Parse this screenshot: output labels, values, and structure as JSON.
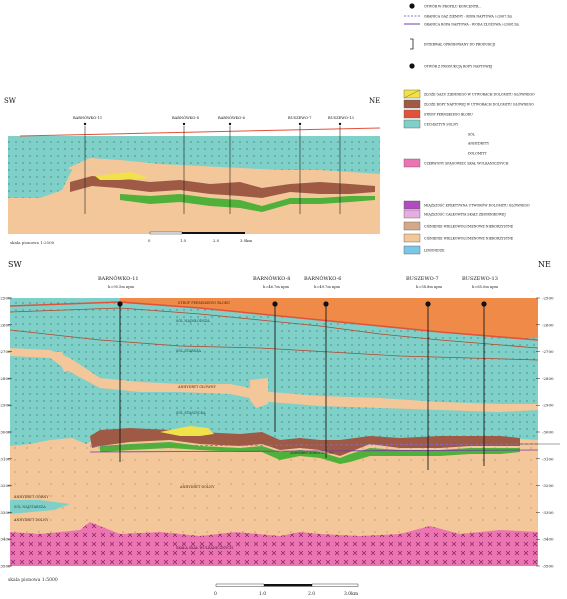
{
  "colors": {
    "salt": "#7fd0c8",
    "anhydrite": "#f3c79a",
    "dolomite": "#4fb03a",
    "main_dolomite_gas": "#f1e24a",
    "main_dolomite_oil": "#9e5a44",
    "pz3_floor": "#e2523a",
    "orange_top": "#ef8a48",
    "volcanics": "#ec74b3",
    "violet": "#b04bc0",
    "lightpink": "#e6aede",
    "tan": "#d5a88a",
    "cream": "#f4c79a",
    "blue": "#7ac7e8",
    "gas_line": "#8b6cc9",
    "oil_line": "#6f3fa5"
  },
  "legend": {
    "items": [
      {
        "symbol": "dot",
        "label": "OTWÓR W PROFILU KONCENTR..."
      },
      {
        "symbol": "dash",
        "label": "GRANICA GAZ ZIEMNY - ROPA NAFTOWA /-/2067.5m"
      },
      {
        "symbol": "line",
        "label": "GRANICA ROPA NAFTOWA - WODA ZŁOŻOWA /-/2068.5m"
      },
      {
        "symbol": "bracket",
        "label": "INTERWAŁ OPRÓBOWANY DO PRODUKCJI"
      },
      {
        "symbol": "dot",
        "label": "OTWÓR Z PRODUKCJĄ ROPY NAFTOWEJ"
      },
      {
        "symbol": "swatch-gas",
        "label": "ZŁOŻE GAZU ZIEMNEGO W UTWORACH DOLOMITU GŁÓWNEGO"
      },
      {
        "symbol": "swatch-oil",
        "label": "ZŁOŻE ROPY NAFTOWEJ W UTWORACH DOLOMITU GŁÓWNEGO"
      },
      {
        "symbol": "swatch-floor",
        "label": "STROP PERMSKIEGO BLOKU"
      },
      {
        "symbol": "swatch-salt",
        "label": "CECHSZTYN SOLNY"
      },
      {
        "symbol": "label-only",
        "label": "SÓL"
      },
      {
        "symbol": "label-only",
        "label": "ANHYDRYTY"
      },
      {
        "symbol": "label-only",
        "label": "DOLOMITY"
      },
      {
        "symbol": "swatch-volc",
        "label": "CZERWONY SPĄGOWIEC SKAŁ WULKANICZNYCH"
      },
      {
        "symbol": "swatch-violet",
        "label": "MIĄŻSZOŚĆ EFEKTYWNA UTWORÓW DOLOMITU GŁÓWNEGO"
      },
      {
        "symbol": "swatch-lpink",
        "label": "MIĄŻSZOŚĆ CAŁKOWITA SKAŁY ZBIORNIKOWEJ"
      },
      {
        "symbol": "swatch-tan",
        "label": "CIŚNIENIE WIELKOWOLUMENOWE NIEKORZYSTNE"
      },
      {
        "symbol": "swatch-cream",
        "label": "CIŚNIENIE WIELKOWOLUMENOWE NIEKORZYSTNE"
      },
      {
        "symbol": "swatch-blue",
        "label": "LIMONIDZE"
      }
    ]
  },
  "small_section": {
    "direction_left": "SW",
    "direction_right": "NE",
    "wells": [
      "BARNÓWKO-11",
      "BARNÓWKO-8",
      "BARNÓWKO-6",
      "BUSZEWO-7",
      "BUSZEWO-13"
    ],
    "scale_label": "skala pionowa 1:2500",
    "scale_ticks": [
      "0",
      "1.0",
      "2.0",
      "3.0km"
    ]
  },
  "main_section": {
    "direction_left": "SW",
    "direction_right": "NE",
    "wells": [
      {
        "name": "BARNÓWKO-11",
        "elev": "h=95.5m npm"
      },
      {
        "name": "BARNÓWKO-8",
        "elev": "h=46.7m npm"
      },
      {
        "name": "BARNÓWKO-6",
        "elev": "h=49.7m npm"
      },
      {
        "name": "BUSZEWO-7",
        "elev": "h=58.8m npm"
      },
      {
        "name": "BUSZEWO-13",
        "elev": "h=65.0m npm"
      }
    ],
    "depth_ticks": [
      "-2500",
      "-2600",
      "-2700",
      "-2800",
      "-2900",
      "-3000",
      "-3100",
      "-3200",
      "-3300",
      "-3400",
      "-3500"
    ],
    "unit_labels": {
      "top_orange": "STROP PERMSKIEGO BLOKU",
      "salt_upper": "SÓL NAJMŁODSZA",
      "salt_mid": "SÓL STARSZA",
      "salt_low": "SÓL STASZYCKA",
      "anhydrite_main": "ANHYDRYT GŁÓWNY",
      "anhydrite_lower": "ANHYDRYT DOLNY",
      "anhydrite_floor": "ANHYDRYT GÓRNY/DOLNY",
      "base_left1": "ANHYDRYT GÓRNY",
      "base_left2": "SÓL NAJSTARSZA",
      "base_left3": "ANHYDRYT DOLNY",
      "volcanics": "SKAŁA SKAŁ WULKANICZNYCH"
    },
    "scale_label": "skala pionowa 1:5000",
    "scale_ticks": [
      "0",
      "1.0",
      "2.0",
      "3.0km"
    ]
  }
}
